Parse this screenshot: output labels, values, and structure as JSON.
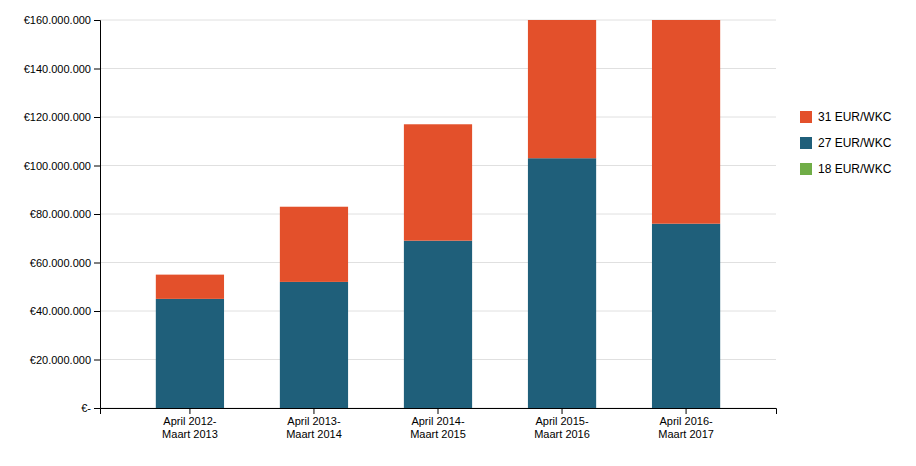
{
  "chart_data": {
    "type": "bar",
    "stacked": true,
    "categories": [
      "April 2012-\nMaart 2013",
      "April 2013-\nMaart 2014",
      "April 2014-\nMaart 2015",
      "April 2015-\nMaart 2016",
      "April 2016-\nMaart 2017"
    ],
    "series": [
      {
        "name": "18 EUR/WKC",
        "color": "#70ad47",
        "values": [
          0,
          0,
          0,
          0,
          0
        ]
      },
      {
        "name": "27 EUR/WKC",
        "color": "#1f5f7a",
        "values": [
          45000000,
          52000000,
          69000000,
          103000000,
          76000000
        ]
      },
      {
        "name": "31 EUR/WKC",
        "color": "#e3502b",
        "values": [
          10000000,
          31000000,
          48000000,
          57000000,
          84000000
        ]
      }
    ],
    "ylim": [
      0,
      160000000
    ],
    "yticks": [
      {
        "value": 0,
        "label": "€-"
      },
      {
        "value": 20000000,
        "label": "€20.000.000"
      },
      {
        "value": 40000000,
        "label": "€40.000.000"
      },
      {
        "value": 60000000,
        "label": "€60.000.000"
      },
      {
        "value": 80000000,
        "label": "€80.000.000"
      },
      {
        "value": 100000000,
        "label": "€100.000.000"
      },
      {
        "value": 120000000,
        "label": "€120.000.000"
      },
      {
        "value": 140000000,
        "label": "€140.000.000"
      },
      {
        "value": 160000000,
        "label": "€160.000.000"
      }
    ],
    "grid": true,
    "legend": "right"
  }
}
